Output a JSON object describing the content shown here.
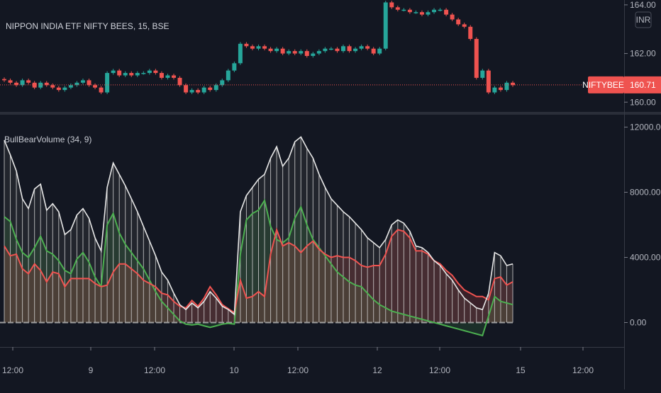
{
  "chart_data": [
    {
      "type": "candlestick",
      "title": "NIPPON INDIA ETF NIFTY BEES, 15, BSE",
      "currency": "INR",
      "last_price_label": "NIFTYBEES",
      "last_price": "160.71",
      "y_ticks": [
        "164.00",
        "162.00",
        "160.00"
      ],
      "ylim": [
        159.6,
        164.2
      ],
      "x_ticks": [
        "12:00",
        "9",
        "12:00",
        "10",
        "12:00",
        "12",
        "12:00",
        "15",
        "12:00"
      ],
      "close": [
        160.9,
        160.8,
        160.7,
        160.9,
        160.8,
        160.6,
        160.8,
        160.7,
        160.6,
        160.5,
        160.6,
        160.7,
        160.8,
        160.9,
        160.7,
        160.6,
        160.4,
        161.2,
        161.3,
        161.1,
        161.2,
        161.1,
        161.2,
        161.2,
        161.3,
        161.2,
        161.0,
        161.1,
        161.0,
        160.7,
        160.4,
        160.5,
        160.4,
        160.6,
        160.5,
        160.7,
        160.9,
        161.3,
        161.6,
        162.4,
        162.3,
        162.2,
        162.3,
        162.2,
        162.1,
        162.2,
        162.0,
        162.1,
        162.0,
        162.1,
        161.9,
        162.0,
        162.1,
        162.2,
        162.2,
        162.1,
        162.3,
        162.1,
        162.2,
        162.3,
        162.2,
        162.0,
        162.2,
        164.1,
        163.9,
        163.8,
        163.8,
        163.7,
        163.7,
        163.6,
        163.7,
        163.8,
        163.8,
        163.6,
        163.4,
        163.2,
        163.1,
        162.6,
        161.0,
        161.3,
        160.4,
        160.6,
        160.5,
        160.8,
        160.7
      ],
      "indicator": {
        "title": "BullBearVolume (34, 9)",
        "y_ticks": [
          "12000.00",
          "8000.00",
          "4000.00",
          "0.00"
        ],
        "ylim": [
          -1500,
          12500
        ],
        "series": [
          {
            "role": "total",
            "color": "#e8e8e8",
            "values": [
              11200,
              10300,
              9300,
              7600,
              7000,
              8200,
              8500,
              6900,
              7300,
              6800,
              5400,
              5700,
              6600,
              7000,
              6400,
              5200,
              4400,
              8300,
              9800,
              9100,
              8400,
              7600,
              6800,
              5900,
              5000,
              4100,
              3100,
              2600,
              1800,
              1100,
              800,
              1200,
              900,
              1300,
              1900,
              1500,
              1000,
              800,
              500,
              6800,
              7800,
              8300,
              8800,
              9100,
              10100,
              10800,
              9600,
              10100,
              11100,
              11400,
              10700,
              10100,
              9100,
              8300,
              7600,
              7200,
              6800,
              6500,
              6100,
              5700,
              5200,
              4900,
              4600,
              5100,
              6000,
              6300,
              6100,
              5600,
              4700,
              4600,
              4300,
              3800,
              3500,
              3000,
              2600,
              2000,
              1500,
              1200,
              900,
              800,
              1800,
              4300,
              4100,
              3500,
              3600
            ]
          },
          {
            "role": "bull",
            "color": "#4caf50",
            "values": [
              6500,
              6200,
              5100,
              4300,
              4000,
              4600,
              5300,
              4400,
              4200,
              3800,
              3200,
              3000,
              3900,
              4300,
              3700,
              2800,
              2200,
              6000,
              6700,
              5500,
              4800,
              4300,
              3800,
              3300,
              2600,
              1900,
              1300,
              900,
              500,
              100,
              -100,
              -150,
              -100,
              -200,
              -300,
              -200,
              -100,
              -50,
              -100,
              4200,
              6300,
              6700,
              6900,
              7500,
              5900,
              5100,
              4900,
              5200,
              6400,
              7100,
              6000,
              5100,
              4600,
              4100,
              3600,
              3100,
              2800,
              2500,
              2300,
              2200,
              1800,
              1400,
              1100,
              900,
              700,
              600,
              500,
              400,
              300,
              200,
              100,
              0,
              -100,
              -200,
              -300,
              -400,
              -500,
              -600,
              -700,
              -800,
              400,
              1600,
              1300,
              1200,
              1100
            ]
          },
          {
            "role": "bear",
            "color": "#ef5350",
            "values": [
              4700,
              4100,
              4200,
              3300,
              3000,
              3600,
              3200,
              2500,
              3100,
              3000,
              2200,
              2700,
              2700,
              2700,
              2700,
              2400,
              2200,
              2300,
              3100,
              3600,
              3600,
              3300,
              3000,
              2600,
              2400,
              2200,
              1800,
              1700,
              1300,
              1000,
              900,
              1350,
              1000,
              1500,
              2200,
              1700,
              1100,
              850,
              600,
              2600,
              1500,
              1600,
              1900,
              1600,
              4200,
              5700,
              4700,
              4900,
              4700,
              4300,
              4700,
              5000,
              4500,
              4200,
              4000,
              4100,
              4000,
              4000,
              3800,
              3500,
              3400,
              3500,
              3500,
              4200,
              5300,
              5700,
              5600,
              5200,
              4400,
              4400,
              4200,
              3800,
              3600,
              3200,
              2900,
              2400,
              2000,
              1800,
              1600,
              1600,
              1400,
              2700,
              2800,
              2300,
              2500
            ]
          }
        ]
      }
    }
  ]
}
